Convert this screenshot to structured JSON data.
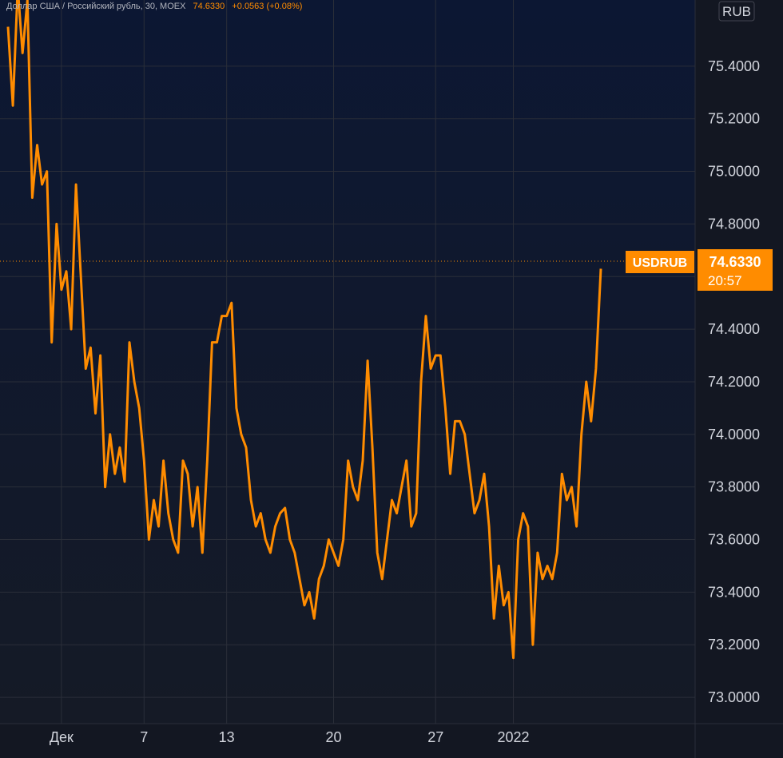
{
  "header": {
    "title": "Доллар США / Российский рубль, 30, MOEX",
    "last": "74.6330",
    "change": "+0.0563 (+0.08%)"
  },
  "currency_button": "RUB",
  "price_badge": {
    "symbol": "USDRUB",
    "price": "74.6330",
    "countdown": "20:57"
  },
  "colors": {
    "background_top": "#0c1733",
    "background_bottom": "#131722",
    "line": "#ff8c00",
    "badge": "#ff8c00",
    "text": "#d1d4dc",
    "grid": "#2a2e39"
  },
  "chart_data": {
    "type": "line",
    "title": "Доллар США / Российский рубль, 30, MOEX",
    "series": [
      {
        "name": "USDRUB",
        "x_ticks_ref": true,
        "points": [
          [
            0,
            75.55
          ],
          [
            1,
            75.25
          ],
          [
            2,
            75.7
          ],
          [
            3,
            75.45
          ],
          [
            4,
            75.65
          ],
          [
            5,
            74.9
          ],
          [
            6,
            75.1
          ],
          [
            7,
            74.95
          ],
          [
            8,
            75.0
          ],
          [
            9,
            74.35
          ],
          [
            10,
            74.8
          ],
          [
            11,
            74.55
          ],
          [
            12,
            74.62
          ],
          [
            13,
            74.4
          ],
          [
            14,
            74.95
          ],
          [
            15,
            74.6
          ],
          [
            16,
            74.25
          ],
          [
            17,
            74.33
          ],
          [
            18,
            74.08
          ],
          [
            19,
            74.3
          ],
          [
            20,
            73.8
          ],
          [
            21,
            74.0
          ],
          [
            22,
            73.85
          ],
          [
            23,
            73.95
          ],
          [
            24,
            73.82
          ],
          [
            25,
            74.35
          ],
          [
            26,
            74.2
          ],
          [
            27,
            74.1
          ],
          [
            28,
            73.9
          ],
          [
            29,
            73.6
          ],
          [
            30,
            73.75
          ],
          [
            31,
            73.65
          ],
          [
            32,
            73.9
          ],
          [
            33,
            73.7
          ],
          [
            34,
            73.6
          ],
          [
            35,
            73.55
          ],
          [
            36,
            73.9
          ],
          [
            37,
            73.85
          ],
          [
            38,
            73.65
          ],
          [
            39,
            73.8
          ],
          [
            40,
            73.55
          ],
          [
            41,
            73.9
          ],
          [
            42,
            74.35
          ],
          [
            43,
            74.35
          ],
          [
            44,
            74.45
          ],
          [
            45,
            74.45
          ],
          [
            46,
            74.5
          ],
          [
            47,
            74.1
          ],
          [
            48,
            74.0
          ],
          [
            49,
            73.95
          ],
          [
            50,
            73.75
          ],
          [
            51,
            73.65
          ],
          [
            52,
            73.7
          ],
          [
            53,
            73.6
          ],
          [
            54,
            73.55
          ],
          [
            55,
            73.65
          ],
          [
            56,
            73.7
          ],
          [
            57,
            73.72
          ],
          [
            58,
            73.6
          ],
          [
            59,
            73.55
          ],
          [
            60,
            73.45
          ],
          [
            61,
            73.35
          ],
          [
            62,
            73.4
          ],
          [
            63,
            73.3
          ],
          [
            64,
            73.45
          ],
          [
            65,
            73.5
          ],
          [
            66,
            73.6
          ],
          [
            67,
            73.55
          ],
          [
            68,
            73.5
          ],
          [
            69,
            73.6
          ],
          [
            70,
            73.9
          ],
          [
            71,
            73.8
          ],
          [
            72,
            73.75
          ],
          [
            73,
            73.9
          ],
          [
            74,
            74.28
          ],
          [
            75,
            73.95
          ],
          [
            76,
            73.55
          ],
          [
            77,
            73.45
          ],
          [
            78,
            73.6
          ],
          [
            79,
            73.75
          ],
          [
            80,
            73.7
          ],
          [
            81,
            73.8
          ],
          [
            82,
            73.9
          ],
          [
            83,
            73.65
          ],
          [
            84,
            73.7
          ],
          [
            85,
            74.2
          ],
          [
            86,
            74.45
          ],
          [
            87,
            74.25
          ],
          [
            88,
            74.3
          ],
          [
            89,
            74.3
          ],
          [
            90,
            74.1
          ],
          [
            91,
            73.85
          ],
          [
            92,
            74.05
          ],
          [
            93,
            74.05
          ],
          [
            94,
            74.0
          ],
          [
            95,
            73.85
          ],
          [
            96,
            73.7
          ],
          [
            97,
            73.75
          ],
          [
            98,
            73.85
          ],
          [
            99,
            73.65
          ],
          [
            100,
            73.3
          ],
          [
            101,
            73.5
          ],
          [
            102,
            73.35
          ],
          [
            103,
            73.4
          ],
          [
            104,
            73.15
          ],
          [
            105,
            73.6
          ],
          [
            106,
            73.7
          ],
          [
            107,
            73.65
          ],
          [
            108,
            73.2
          ],
          [
            109,
            73.55
          ],
          [
            110,
            73.45
          ],
          [
            111,
            73.5
          ],
          [
            112,
            73.45
          ],
          [
            113,
            73.55
          ],
          [
            114,
            73.85
          ],
          [
            115,
            73.75
          ],
          [
            116,
            73.8
          ],
          [
            117,
            73.65
          ],
          [
            118,
            74.0
          ],
          [
            119,
            74.2
          ],
          [
            120,
            74.05
          ],
          [
            121,
            74.25
          ],
          [
            122,
            74.63
          ]
        ]
      }
    ],
    "x_ticks": [
      {
        "label": "Дек",
        "x": 11
      },
      {
        "label": "7",
        "x": 28
      },
      {
        "label": "13",
        "x": 45
      },
      {
        "label": "20",
        "x": 67
      },
      {
        "label": "27",
        "x": 88
      },
      {
        "label": "2022",
        "x": 104
      }
    ],
    "x_range": [
      0,
      122
    ],
    "ylim": [
      72.9,
      75.6
    ],
    "y_ticks": [
      "75.4000",
      "75.2000",
      "75.0000",
      "74.8000",
      "74.6000",
      "74.4000",
      "74.2000",
      "74.0000",
      "73.8000",
      "73.6000",
      "73.4000",
      "73.2000",
      "73.0000"
    ],
    "last_value": 74.633,
    "grid": true
  }
}
